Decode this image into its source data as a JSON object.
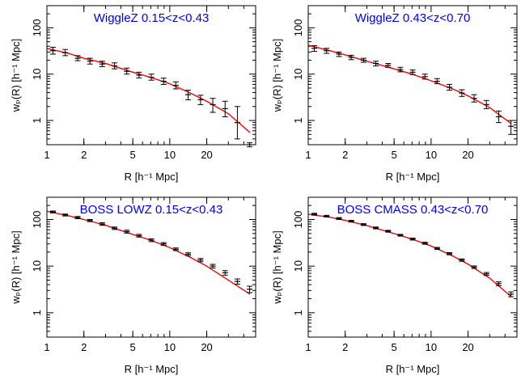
{
  "figure": {
    "background_color": "#ffffff",
    "frame_color": "#000000"
  },
  "chart_data": [
    {
      "type": "line",
      "title": "WiggleZ 0.15<z<0.43",
      "title_color": "#0000ee",
      "xlabel": "R [h⁻¹ Mpc]",
      "ylabel": "wₚ(R) [h⁻¹ Mpc]",
      "xscale": "log",
      "yscale": "log",
      "xlim": [
        1,
        50
      ],
      "ylim": [
        0.3,
        300
      ],
      "x_ticks": [
        1,
        2,
        5,
        10,
        20
      ],
      "y_ticks": [
        1,
        10,
        100
      ],
      "model": {
        "color": "#ff0000",
        "x": [
          1,
          1.5,
          2,
          3,
          5,
          7,
          10,
          15,
          20,
          30,
          45
        ],
        "y": [
          36,
          28,
          22,
          17,
          11,
          8.5,
          6.2,
          3.8,
          2.6,
          1.4,
          0.55
        ]
      },
      "measurements": {
        "color": "#000000",
        "x": [
          1.12,
          1.41,
          1.78,
          2.24,
          2.82,
          3.55,
          4.47,
          5.62,
          7.08,
          8.91,
          11.2,
          14.1,
          17.8,
          22.4,
          28.2,
          35.5,
          44.7
        ],
        "y": [
          32,
          29,
          22,
          19,
          16.5,
          15,
          11.5,
          9.5,
          8.5,
          7,
          5.7,
          3.6,
          2.8,
          2.2,
          1.8,
          0.9,
          0.3
        ],
        "yerr_low": [
          27,
          25,
          19.5,
          16.5,
          14.5,
          13,
          10,
          8.3,
          7.4,
          6,
          4.8,
          2.8,
          2.2,
          1.5,
          1.2,
          0.4,
          0.27
        ],
        "yerr_high": [
          38,
          34,
          25,
          22,
          19,
          17.5,
          13.5,
          11,
          10,
          8.2,
          6.8,
          4.5,
          3.5,
          3,
          2.6,
          2,
          0.33
        ]
      }
    },
    {
      "type": "line",
      "title": "WiggleZ 0.43<z<0.70",
      "title_color": "#0000ee",
      "xlabel": "R [h⁻¹ Mpc]",
      "ylabel": "wₚ(R) [h⁻¹ Mpc]",
      "xscale": "log",
      "yscale": "log",
      "xlim": [
        1,
        50
      ],
      "ylim": [
        0.3,
        300
      ],
      "x_ticks": [
        1,
        2,
        5,
        10,
        20
      ],
      "y_ticks": [
        1,
        10,
        100
      ],
      "model": {
        "color": "#ff0000",
        "x": [
          1,
          1.5,
          2,
          3,
          5,
          7,
          10,
          15,
          20,
          30,
          45
        ],
        "y": [
          42,
          32,
          26,
          19,
          13,
          10,
          7.2,
          4.8,
          3.4,
          1.9,
          0.85
        ]
      },
      "measurements": {
        "color": "#000000",
        "x": [
          1.12,
          1.41,
          1.78,
          2.24,
          2.82,
          3.55,
          4.47,
          5.62,
          7.08,
          8.91,
          11.2,
          14.1,
          17.8,
          22.4,
          28.2,
          35.5,
          44.7
        ],
        "y": [
          36,
          32,
          27,
          23,
          20,
          17,
          15.5,
          12.5,
          11,
          8.8,
          7,
          5.2,
          3.9,
          3,
          2.2,
          1.2,
          0.75
        ],
        "yerr_low": [
          31,
          28,
          24,
          20.5,
          18,
          15,
          14,
          11.2,
          9.8,
          7.8,
          6.2,
          4.5,
          3.3,
          2.5,
          1.8,
          0.9,
          0.5
        ],
        "yerr_high": [
          41,
          36,
          30,
          25.5,
          22,
          19,
          17,
          14,
          12.3,
          10,
          8,
          6,
          4.6,
          3.6,
          2.7,
          1.6,
          1.0
        ]
      }
    },
    {
      "type": "line",
      "title": "BOSS LOWZ 0.15<z<0.43",
      "title_color": "#0000ee",
      "xlabel": "R [h⁻¹ Mpc]",
      "ylabel": "wₚ(R) [h⁻¹ Mpc]",
      "xscale": "log",
      "yscale": "log",
      "xlim": [
        1,
        50
      ],
      "ylim": [
        0.3,
        300
      ],
      "x_ticks": [
        1,
        2,
        5,
        10,
        20
      ],
      "y_ticks": [
        1,
        10,
        100
      ],
      "model": {
        "color": "#ff0000",
        "x": [
          1,
          1.5,
          2,
          3,
          5,
          7,
          10,
          15,
          20,
          30,
          45
        ],
        "y": [
          150,
          120,
          100,
          75,
          48,
          36,
          25,
          15,
          10,
          5,
          2.5
        ]
      },
      "measurements": {
        "color": "#000000",
        "x": [
          1.12,
          1.41,
          1.78,
          2.24,
          2.82,
          3.55,
          4.47,
          5.62,
          7.08,
          8.91,
          11.2,
          14.1,
          17.8,
          22.4,
          28.2,
          35.5,
          44.7
        ],
        "y": [
          145,
          125,
          110,
          95,
          80,
          65,
          55,
          45,
          36,
          30,
          23,
          18,
          13.5,
          10,
          7.2,
          4.7,
          3.2
        ],
        "yerr_low": [
          138,
          119,
          104,
          90,
          75,
          61,
          51,
          42,
          33.5,
          28,
          21.5,
          16.7,
          12.4,
          9.1,
          6.4,
          4.1,
          2.7
        ],
        "yerr_high": [
          152,
          131,
          116,
          100,
          85,
          69,
          59,
          48,
          38.5,
          32,
          24.5,
          19.3,
          14.6,
          10.9,
          8.0,
          5.3,
          3.7
        ]
      }
    },
    {
      "type": "line",
      "title": "BOSS CMASS 0.43<z<0.70",
      "title_color": "#0000ee",
      "xlabel": "R [h⁻¹ Mpc]",
      "ylabel": "wₚ(R) [h⁻¹ Mpc]",
      "xscale": "log",
      "yscale": "log",
      "xlim": [
        1,
        50
      ],
      "ylim": [
        0.3,
        300
      ],
      "x_ticks": [
        1,
        2,
        5,
        10,
        20
      ],
      "y_ticks": [
        1,
        10,
        100
      ],
      "model": {
        "color": "#ff0000",
        "x": [
          1,
          1.5,
          2,
          3,
          5,
          7,
          10,
          15,
          20,
          30,
          45
        ],
        "y": [
          130,
          112,
          96,
          74,
          50,
          38,
          27,
          16.5,
          11,
          5.5,
          2.2
        ]
      },
      "measurements": {
        "color": "#000000",
        "x": [
          1.12,
          1.41,
          1.78,
          2.24,
          2.82,
          3.55,
          4.47,
          5.62,
          7.08,
          8.91,
          11.2,
          14.1,
          17.8,
          22.4,
          28.2,
          35.5,
          44.7
        ],
        "y": [
          130,
          118,
          105,
          92,
          78,
          66,
          56,
          46,
          38,
          31,
          24,
          18.5,
          13.5,
          9.5,
          6.8,
          4.2,
          2.5
        ],
        "yerr_low": [
          124,
          113,
          100,
          88,
          74.5,
          63,
          53.5,
          44,
          36.2,
          29.5,
          22.8,
          17.5,
          12.7,
          8.9,
          6.3,
          3.8,
          2.2
        ],
        "yerr_high": [
          136,
          123,
          110,
          96,
          81.5,
          69,
          58.5,
          48,
          39.8,
          32.5,
          25.2,
          19.5,
          14.3,
          10.1,
          7.3,
          4.6,
          2.8
        ]
      }
    }
  ]
}
